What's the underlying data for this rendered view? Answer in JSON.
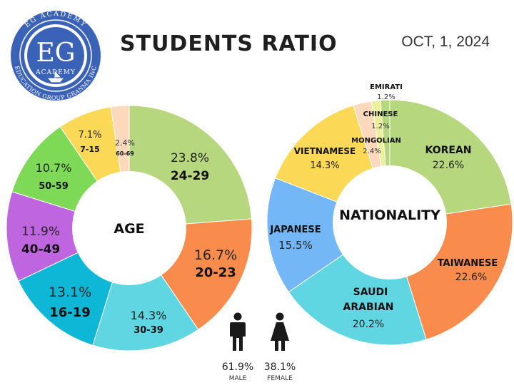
{
  "header": {
    "title": "STUDENTS RATIO",
    "date": "OCT, 1, 2024"
  },
  "logo": {
    "top_text": "EG ACADEMY",
    "letters": "EG",
    "sub": "ACADEMY",
    "ring_text": "EDUCATION GROUP GRANMA INC"
  },
  "colors": {
    "green": "#b7d77f",
    "orange": "#f98c4c",
    "cyan": "#5fd6e2",
    "blue": "#0fb7d6",
    "purple": "#c065e0",
    "brightgreen": "#7ed957",
    "yellow": "#fbd856",
    "peach": "#fcd9bd",
    "lightblue": "#73b7f6",
    "lightyellow": "#edf09a",
    "logo_blue": "#3a63b8"
  },
  "chart_data": [
    {
      "type": "pie",
      "title": "",
      "center_label": "AGE",
      "slices": [
        {
          "label": "24-29",
          "value": 23.8,
          "pct_text": "23.8%",
          "color": "#b7d77f"
        },
        {
          "label": "20-23",
          "value": 16.7,
          "pct_text": "16.7%",
          "color": "#f98c4c"
        },
        {
          "label": "30-39",
          "value": 14.3,
          "pct_text": "14.3%",
          "color": "#5fd6e2"
        },
        {
          "label": "16-19",
          "value": 13.1,
          "pct_text": "13.1%",
          "color": "#0fb7d6"
        },
        {
          "label": "40-49",
          "value": 11.9,
          "pct_text": "11.9%",
          "color": "#c065e0"
        },
        {
          "label": "50-59",
          "value": 10.7,
          "pct_text": "10.7%",
          "color": "#7ed957"
        },
        {
          "label": "7-15",
          "value": 7.1,
          "pct_text": "7.1%",
          "color": "#fbd856"
        },
        {
          "label": "60-69",
          "value": 2.4,
          "pct_text": "2.4%",
          "color": "#fcd9bd"
        }
      ]
    },
    {
      "type": "pie",
      "title": "",
      "center_label": "NATIONALITY",
      "slices": [
        {
          "label": "KOREAN",
          "value": 22.6,
          "pct_text": "22.6%",
          "color": "#b7d77f"
        },
        {
          "label": "TAIWANESE",
          "value": 22.6,
          "pct_text": "22.6%",
          "color": "#f98c4c"
        },
        {
          "label": "SAUDI ARABIAN",
          "label_lines": [
            "SAUDI",
            "ARABIAN"
          ],
          "value": 20.2,
          "pct_text": "20.2%",
          "color": "#5fd6e2"
        },
        {
          "label": "JAPANESE",
          "value": 15.5,
          "pct_text": "15.5%",
          "color": "#73b7f6"
        },
        {
          "label": "VIETNAMESE",
          "value": 14.3,
          "pct_text": "14.3%",
          "color": "#fbd856"
        },
        {
          "label": "MONGOLIAN",
          "value": 2.4,
          "pct_text": "2.4%",
          "color": "#fcd9bd"
        },
        {
          "label": "CHINESE",
          "value": 1.2,
          "pct_text": "1.2%",
          "color": "#edf09a"
        },
        {
          "label": "EMIRATI",
          "value": 1.2,
          "pct_text": "1.2%",
          "color": "#b7d77f"
        }
      ]
    }
  ],
  "gender": {
    "male": {
      "pct_text": "61.9%",
      "label": "MALE"
    },
    "female": {
      "pct_text": "38.1%",
      "label": "FEMALE"
    }
  }
}
